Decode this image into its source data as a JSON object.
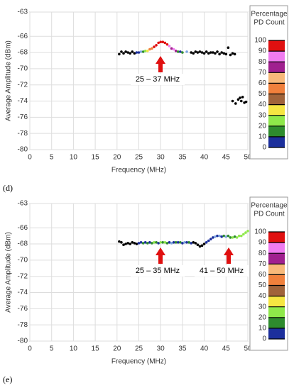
{
  "chart_data": [
    {
      "type": "scatter",
      "panel_label": "(d)",
      "xlabel": "Frequency (MHz)",
      "ylabel": "Average Amplitude (dBm)",
      "xlim": [
        0,
        50
      ],
      "ylim": [
        -80,
        -63
      ],
      "xticks": [
        0,
        5,
        10,
        15,
        20,
        25,
        30,
        35,
        40,
        45,
        50
      ],
      "yticks": [
        -63,
        -66,
        -68,
        -70,
        -72,
        -74,
        -76,
        -78,
        -80
      ],
      "grid": true,
      "x": [
        20.5,
        21,
        21.5,
        22,
        22.5,
        23,
        23.5,
        24,
        24.5,
        25,
        25.5,
        26,
        26.5,
        27,
        27.5,
        28,
        28.5,
        29,
        29.5,
        30,
        30.5,
        31,
        31.5,
        32,
        32.5,
        33,
        33.5,
        34,
        34.5,
        35,
        36,
        37,
        37.5,
        38,
        38.5,
        39,
        39.5,
        40,
        40.5,
        41,
        41.5,
        42,
        42.5,
        43,
        43.5,
        44,
        44.5,
        45,
        45.5,
        46,
        46.5,
        47,
        46.5,
        47.2,
        47.8,
        48.2,
        48.5,
        48.8,
        49.2,
        49.6
      ],
      "values": [
        -68.2,
        -67.9,
        -68.1,
        -67.9,
        -68.0,
        -68.1,
        -67.9,
        -68.1,
        -68.0,
        -68.0,
        -67.9,
        -67.9,
        -67.8,
        -67.8,
        -67.6,
        -67.5,
        -67.3,
        -67.1,
        -66.8,
        -66.7,
        -66.7,
        -66.8,
        -67.0,
        -67.2,
        -67.5,
        -67.6,
        -67.8,
        -67.9,
        -67.9,
        -68.0,
        -67.9,
        -68.0,
        -68.1,
        -67.9,
        -68.0,
        -67.9,
        -68.0,
        -68.1,
        -67.9,
        -68.1,
        -68.0,
        -68.0,
        -68.1,
        -67.9,
        -68.2,
        -68.0,
        -68.1,
        -68.2,
        -67.4,
        -68.3,
        -68.1,
        -68.2,
        -74.0,
        -74.3,
        -73.8,
        -73.6,
        -74.0,
        -73.5,
        -74.2,
        -74.1
      ],
      "colors": [
        "#000",
        "#000",
        "#000",
        "#000",
        "#000",
        "#000",
        "#000",
        "#000",
        "#1c2f9c",
        "#1c2f9c",
        "#7ea6e0",
        "#2e8b2e",
        "#8ee84a",
        "#f5e642",
        "#f0803c",
        "#f0803c",
        "#e01010",
        "#e01010",
        "#e01010",
        "#e01010",
        "#e01010",
        "#e01010",
        "#e01010",
        "#f07cf0",
        "#a0208f",
        "#f07cf0",
        "#a0208f",
        "#2e8b2e",
        "#1c2f9c",
        "#2e8b2e",
        "#7ea6e0",
        "#000",
        "#000",
        "#000",
        "#000",
        "#000",
        "#000",
        "#000",
        "#000",
        "#000",
        "#000",
        "#000",
        "#000",
        "#000",
        "#000",
        "#000",
        "#000",
        "#000",
        "#000",
        "#000",
        "#000",
        "#000",
        "#000",
        "#000",
        "#000",
        "#000",
        "#000",
        "#000",
        "#000",
        "#000"
      ],
      "annotations": [
        "25 – 37 MHz"
      ],
      "colorbar": {
        "title": [
          "Percentage",
          "PD Count"
        ],
        "ticks": [
          0,
          10,
          20,
          30,
          40,
          50,
          60,
          70,
          80,
          90,
          100
        ],
        "colors": [
          "#1c2f9c",
          "#2e8b2e",
          "#8ee84a",
          "#f5e642",
          "#a0633a",
          "#f0803c",
          "#f8b97a",
          "#a0208f",
          "#f07cf0",
          "#e01010"
        ]
      }
    },
    {
      "type": "scatter",
      "panel_label": "(e)",
      "xlabel": "Frequency (MHz)",
      "ylabel": "Average Amplitude (dBm)",
      "xlim": [
        0,
        50
      ],
      "ylim": [
        -80,
        -63
      ],
      "xticks": [
        0,
        5,
        10,
        15,
        20,
        25,
        30,
        35,
        40,
        45,
        50
      ],
      "yticks": [
        -63,
        -66,
        -68,
        -70,
        -72,
        -74,
        -76,
        -78,
        -80
      ],
      "grid": true,
      "x": [
        20.5,
        21,
        21.5,
        22,
        22.5,
        23,
        23.5,
        24,
        24.5,
        25,
        25.5,
        26,
        26.5,
        27,
        27.5,
        28,
        28.5,
        29,
        29.5,
        30,
        30.5,
        31,
        31.5,
        32,
        32.5,
        33,
        33.5,
        34,
        34.5,
        35,
        35.5,
        36,
        36.5,
        37,
        37.5,
        38,
        38.5,
        39,
        39.5,
        40,
        40.5,
        41,
        41.5,
        42,
        42.5,
        43,
        43.5,
        44,
        44.5,
        45,
        45.5,
        46,
        46.5,
        47,
        47.5,
        48,
        48.5,
        49,
        49.5,
        50
      ],
      "values": [
        -67.7,
        -67.8,
        -68.1,
        -68.0,
        -67.9,
        -68.0,
        -67.8,
        -67.9,
        -68.0,
        -67.9,
        -67.8,
        -67.9,
        -67.8,
        -67.9,
        -67.8,
        -67.9,
        -67.8,
        -67.8,
        -67.9,
        -67.8,
        -67.8,
        -67.8,
        -67.9,
        -67.8,
        -67.9,
        -67.8,
        -67.8,
        -67.8,
        -67.8,
        -67.9,
        -67.8,
        -67.8,
        -67.8,
        -67.9,
        -67.8,
        -67.9,
        -68.1,
        -68.3,
        -68.2,
        -68.0,
        -67.8,
        -67.6,
        -67.4,
        -67.2,
        -67.1,
        -67.0,
        -67.0,
        -67.1,
        -67.0,
        -67.1,
        -67.0,
        -67.2,
        -67.2,
        -67.1,
        -67.2,
        -67.0,
        -67.0,
        -66.8,
        -66.6,
        -66.4
      ],
      "colors": [
        "#000",
        "#000",
        "#000",
        "#000",
        "#000",
        "#000",
        "#000",
        "#000",
        "#000",
        "#1c2f9c",
        "#1c2f9c",
        "#2e8b2e",
        "#1c2f9c",
        "#2e8b2e",
        "#1c2f9c",
        "#2e8b2e",
        "#8ee84a",
        "#2e8b2e",
        "#1c2f9c",
        "#8ee84a",
        "#2e8b2e",
        "#8ee84a",
        "#2e8b2e",
        "#1c2f9c",
        "#7ea6e0",
        "#1c2f9c",
        "#2e8b2e",
        "#1c2f9c",
        "#2e8b2e",
        "#1c2f9c",
        "#7ea6e0",
        "#1c2f9c",
        "#2e8b2e",
        "#1c2f9c",
        "#000",
        "#000",
        "#000",
        "#000",
        "#000",
        "#000",
        "#1c2f9c",
        "#1c2f9c",
        "#1c2f9c",
        "#1c2f9c",
        "#7ea6e0",
        "#1c2f9c",
        "#7ea6e0",
        "#1c2f9c",
        "#2e8b2e",
        "#7ea6e0",
        "#2e8b2e",
        "#2e8b2e",
        "#8ee84a",
        "#2e8b2e",
        "#8ee84a",
        "#8ee84a",
        "#8ee84a",
        "#8ee84a",
        "#8ee84a",
        "#8ee84a"
      ],
      "annotations": [
        "25 – 35 MHz",
        "41 – 50 MHz"
      ],
      "colorbar": {
        "title": [
          "Percentage",
          "PD Count"
        ],
        "ticks": [
          0,
          10,
          20,
          30,
          40,
          50,
          60,
          70,
          80,
          90,
          100
        ],
        "colors": [
          "#1c2f9c",
          "#2e8b2e",
          "#8ee84a",
          "#f5e642",
          "#a0633a",
          "#f0803c",
          "#f8b97a",
          "#a0208f",
          "#f07cf0",
          "#e01010"
        ]
      }
    }
  ]
}
